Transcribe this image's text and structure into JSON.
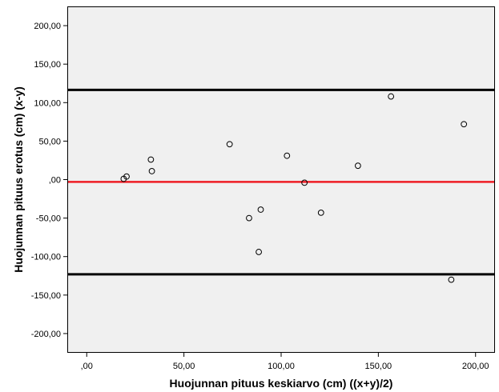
{
  "chart_data": {
    "type": "scatter",
    "title": "",
    "xlabel": "Huojunnan pituus keskiarvo (cm) ((x+y)/2)",
    "ylabel": "Huojunnan pituus erotus (cm) (x-y)",
    "xlim": [
      -10,
      210
    ],
    "ylim": [
      -225,
      225
    ],
    "x_ticks": [
      0,
      50,
      100,
      150,
      200
    ],
    "x_tick_labels": [
      ",00",
      "50,00",
      "100,00",
      "150,00",
      "200,00"
    ],
    "y_ticks": [
      200,
      150,
      100,
      50,
      0,
      -50,
      -100,
      -150,
      -200
    ],
    "y_tick_labels": [
      "200,00",
      "150,00",
      "100,00",
      "50,00",
      ",00",
      "-50,00",
      "-100,00",
      "-150,00",
      "-200,00"
    ],
    "grid": false,
    "points": [
      {
        "x": 19,
        "y": 1
      },
      {
        "x": 20.5,
        "y": 4
      },
      {
        "x": 33,
        "y": 26
      },
      {
        "x": 33.5,
        "y": 11
      },
      {
        "x": 73.5,
        "y": 46
      },
      {
        "x": 83.5,
        "y": -50
      },
      {
        "x": 88.5,
        "y": -94
      },
      {
        "x": 89.5,
        "y": -39
      },
      {
        "x": 103,
        "y": 31
      },
      {
        "x": 112,
        "y": -4
      },
      {
        "x": 120.5,
        "y": -43
      },
      {
        "x": 139.5,
        "y": 18
      },
      {
        "x": 156.5,
        "y": 108
      },
      {
        "x": 187.5,
        "y": -130
      },
      {
        "x": 194,
        "y": 72
      }
    ],
    "reference_lines": [
      {
        "y": 116.5,
        "color": "#000000",
        "role": "upper-limit"
      },
      {
        "y": -3,
        "color": "#ee1c25",
        "role": "mean-difference"
      },
      {
        "y": -123,
        "color": "#000000",
        "role": "lower-limit"
      }
    ],
    "colors": {
      "plot_background": "#f0f0f0",
      "marker_stroke": "#000000",
      "mean_line": "#ee1c25",
      "limit_line": "#000000"
    }
  }
}
